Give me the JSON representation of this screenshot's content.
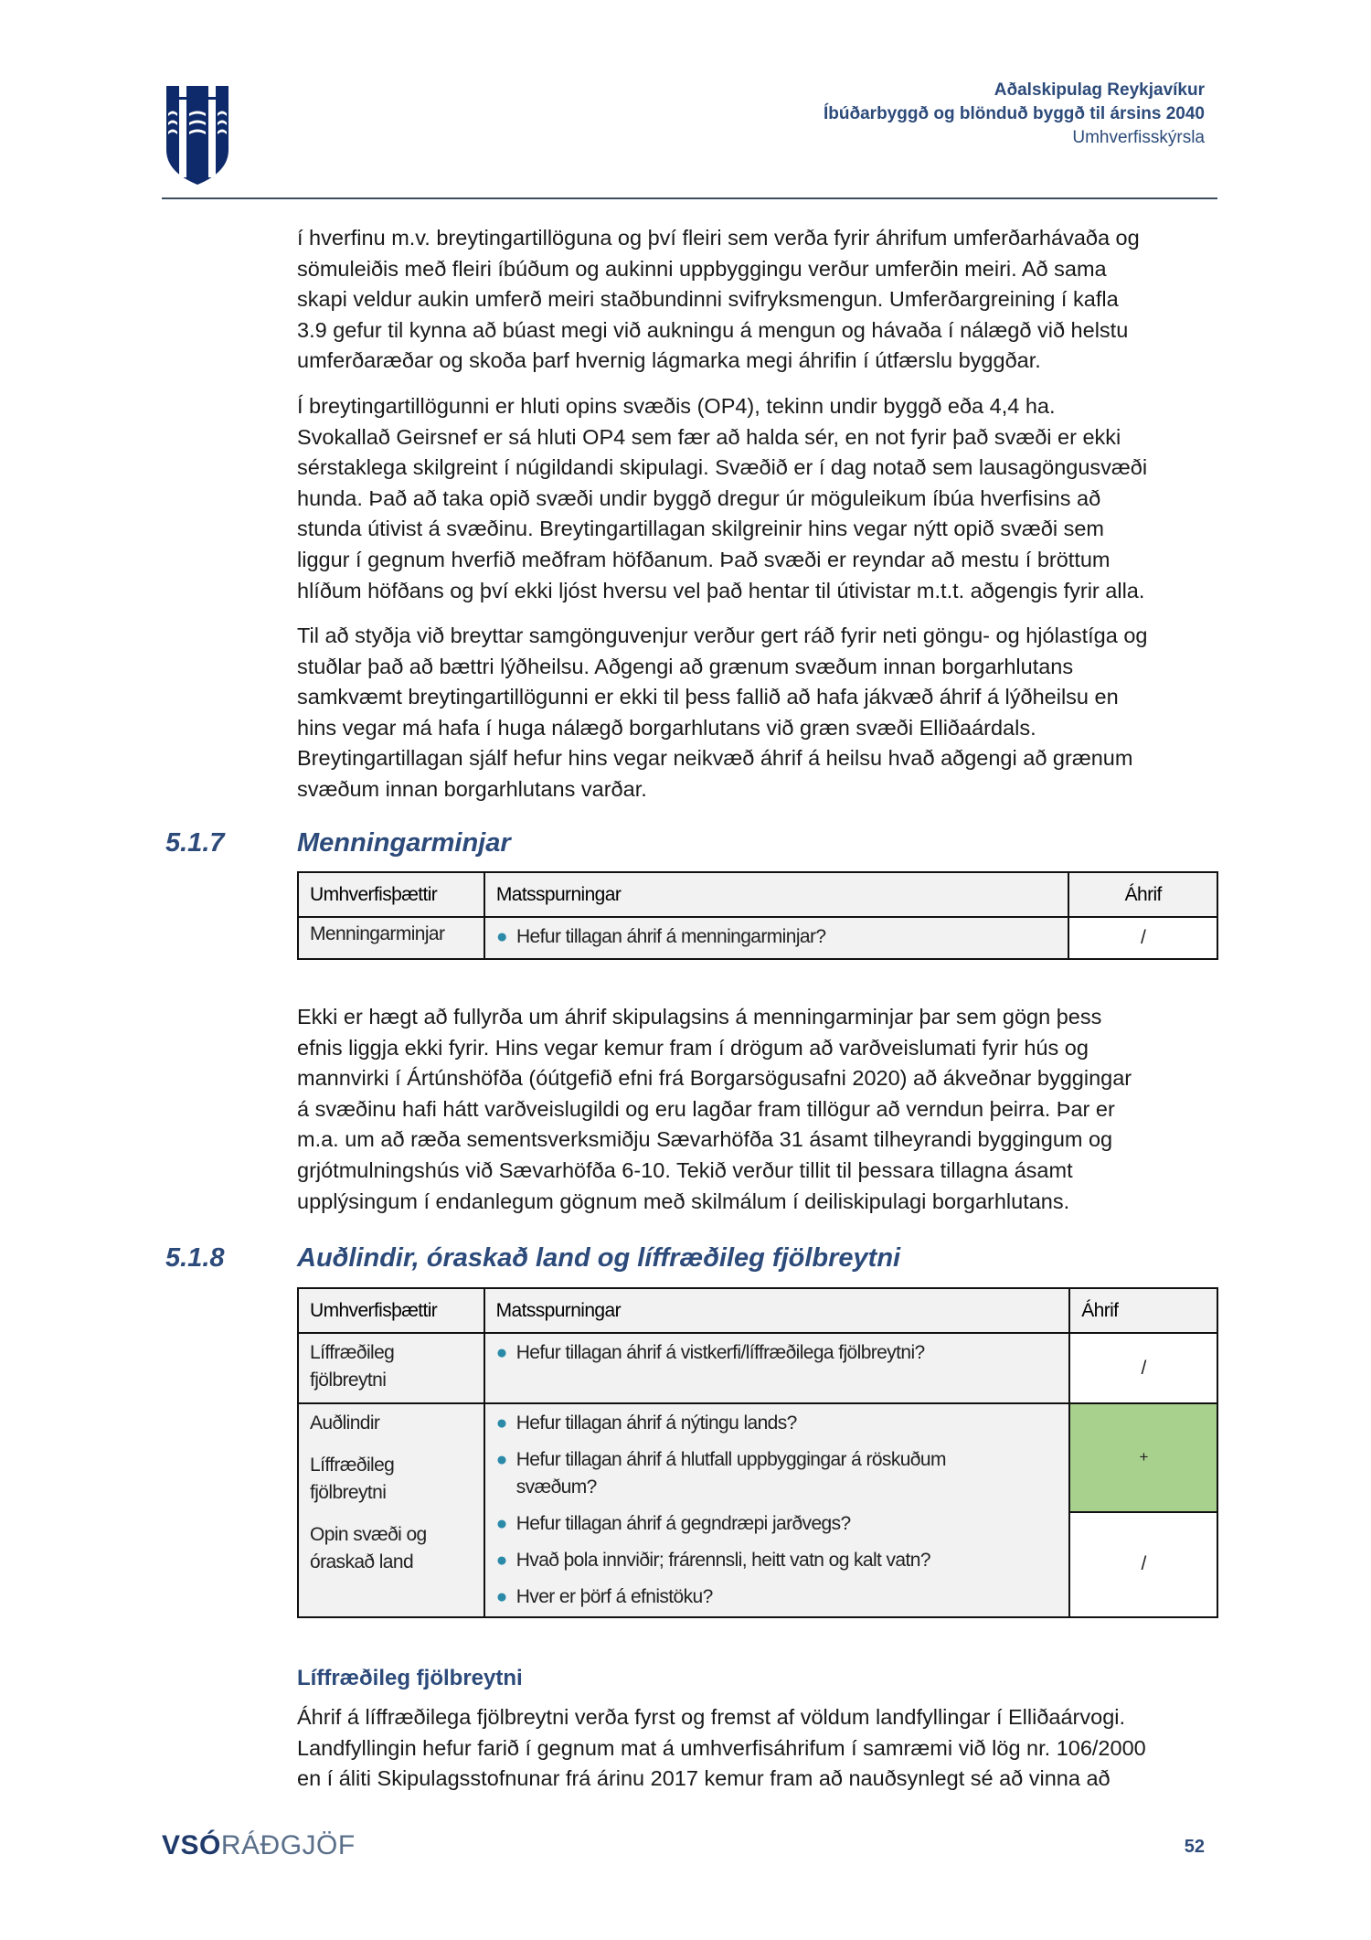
{
  "header": {
    "line1": "Aðalskipulag Reykjavíkur",
    "line2": "Íbúðarbyggð og blönduð byggð til ársins 2040",
    "line3": "Umhverfisskýrsla",
    "logo": "reykjavik-coat-of-arms"
  },
  "colors": {
    "heading": "#2c4a7a",
    "positive": "#a9d18e",
    "bullet": "#2a8aa8"
  },
  "paragraphs": {
    "p1": [
      "í hverfinu m.v. breytingartillöguna og því fleiri sem verða fyrir áhrifum umferðarhávaða og",
      "sömuleiðis með fleiri íbúðum og aukinni uppbyggingu verður umferðin meiri. Að sama",
      "skapi veldur aukin umferð meiri staðbundinni svifryksmengun. Umferðargreining í kafla",
      "3.9 gefur til kynna að búast megi við aukningu á mengun og hávaða í nálægð við helstu",
      "umferðaræðar og skoða þarf hvernig lágmarka megi áhrifin í útfærslu byggðar."
    ],
    "p2": [
      "Í breytingartillögunni er hluti opins svæðis (OP4), tekinn undir byggð eða 4,4 ha.",
      "Svokallað Geirsnef er sá hluti OP4 sem fær að halda sér, en not fyrir það svæði er ekki",
      "sérstaklega skilgreint í núgildandi skipulagi. Svæðið er í dag notað sem lausagöngusvæði",
      "hunda. Það að taka opið svæði undir byggð dregur úr möguleikum íbúa hverfisins að",
      "stunda útivist á svæðinu. Breytingartillagan skilgreinir hins vegar nýtt opið svæði sem",
      "liggur í gegnum hverfið meðfram höfðanum. Það svæði er reyndar að mestu í bröttum",
      "hlíðum höfðans og því ekki ljóst hversu vel það hentar til útivistar m.t.t. aðgengis fyrir alla."
    ],
    "p3": [
      "Til að styðja við breyttar samgönguvenjur verður gert ráð fyrir neti göngu- og hjólastíga og",
      "stuðlar það að bættri lýðheilsu. Aðgengi að grænum svæðum innan borgarhlutans",
      "samkvæmt breytingartillögunni er ekki til þess fallið að hafa jákvæð áhrif á lýðheilsu en",
      "hins vegar má hafa í huga nálægð borgarhlutans við græn svæði Elliðaárdals.",
      "Breytingartillagan sjálf hefur hins vegar neikvæð áhrif á heilsu hvað aðgengi að grænum",
      "svæðum innan borgarhlutans varðar."
    ],
    "p4": [
      "Ekki er hægt að fullyrða um áhrif skipulagsins á menningarminjar þar sem gögn þess",
      "efnis liggja ekki fyrir. Hins vegar kemur fram í drögum að varðveislumati fyrir hús og",
      "mannvirki í Ártúnshöfða (óútgefið efni frá Borgarsögusafni 2020) að ákveðnar byggingar",
      "á svæðinu hafi hátt varðveislugildi og eru lagðar fram tillögur að verndun þeirra. Þar er",
      "m.a. um að ræða sementsverksmiðju Sævarhöfða 31 ásamt tilheyrandi byggingum og",
      "grjótmulningshús við Sævarhöfða 6-10. Tekið verður tillit til þessara tillagna ásamt",
      "upplýsingum í endanlegum gögnum með skilmálum í deiliskipulagi borgarhlutans."
    ],
    "p5": [
      "Áhrif á líffræðilega fjölbreytni verða fyrst og fremst af völdum landfyllingar í Elliðaárvogi.",
      "Landfyllingin hefur farið í gegnum mat á umhverfisáhrifum í samræmi við lög nr. 106/2000",
      "en í áliti Skipulagsstofnunar frá árinu 2017 kemur fram að nauðsynlegt sé að vinna að"
    ]
  },
  "sections": [
    {
      "number": "5.1.7",
      "title": "Menningarminjar"
    },
    {
      "number": "5.1.8",
      "title": "Auðlindir, óraskað land og líffræðileg fjölbreytni"
    }
  ],
  "table1": {
    "headers": [
      "Umhverfisþættir",
      "Matsspurningar",
      "Áhrif"
    ],
    "row": {
      "factor": "Menningarminjar",
      "question": "Hefur tillagan áhrif á menningarminjar?",
      "effect": "/"
    }
  },
  "table2": {
    "headers": [
      "Umhverfisþættir",
      "Matsspurningar",
      "Áhrif"
    ],
    "row1": {
      "factor": "Líffræðileg fjölbreytni",
      "question": "Hefur tillagan áhrif á vistkerfi/líffræðilega fjölbreytni?",
      "effect": "/"
    },
    "row2": {
      "factors": [
        "Auðlindir",
        "Líffræðileg fjölbreytni",
        "Opin svæði og óraskað land"
      ],
      "questions": [
        "Hefur tillagan áhrif á nýtingu lands?",
        "Hefur tillagan áhrif á hlutfall uppbyggingar á röskuðum svæðum?",
        "Hefur tillagan áhrif á gegndræpi jarðvegs?",
        "Hvað þola innviðir; frárennsli, heitt vatn og kalt vatn?",
        "Hver er þörf á efnistöku?"
      ],
      "effect_positive": "+",
      "effect_neutral": "/"
    }
  },
  "subheading": "Líffræðileg fjölbreytni",
  "footer": {
    "brand_bold": "VSÓ",
    "brand_light": "RÁÐGJÖF",
    "page_number": "52"
  }
}
